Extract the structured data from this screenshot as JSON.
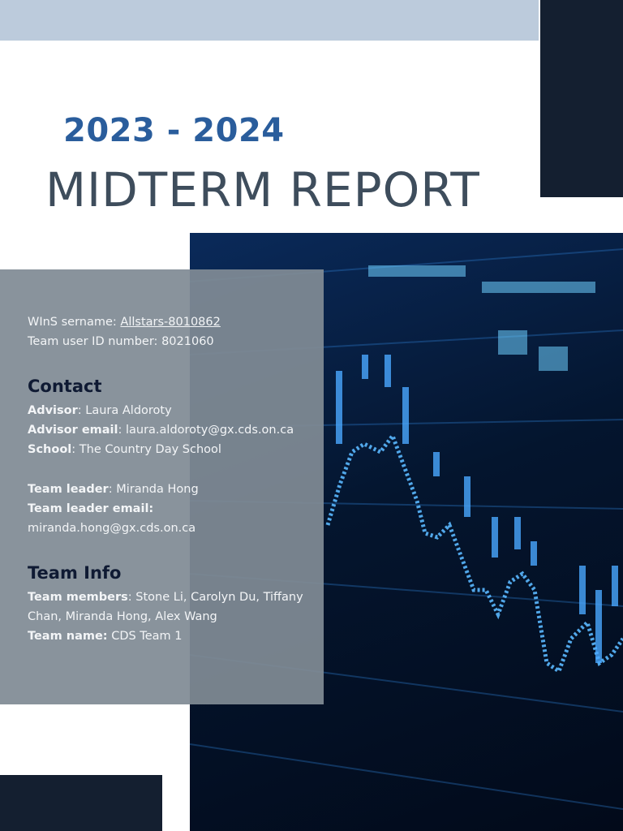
{
  "header": {
    "year": "2023 - 2024",
    "title": "MIDTERM REPORT"
  },
  "account": {
    "username_label": "WInS sername:",
    "username": "Allstars-8010862",
    "team_id_label": "Team user ID number:",
    "team_id": "8021060"
  },
  "contact": {
    "heading": "Contact",
    "advisor_label": "Advisor",
    "advisor": "Laura Aldoroty",
    "advisor_email_label": "Advisor email",
    "advisor_email": "laura.aldoroty@gx.cds.on.ca",
    "school_label": "School",
    "school": "The Country Day School",
    "leader_label": "Team leader",
    "leader": "Miranda Hong",
    "leader_email_label": "Team leader email:",
    "leader_email": "miranda.hong@gx.cds.on.ca"
  },
  "team": {
    "heading": "Team Info",
    "members_label": "Team members",
    "members": "Stone Li, Carolyn Du, Tiffany Chan, Miranda Hong, Alex Wang",
    "name_label": "Team name:",
    "name": "CDS Team 1"
  },
  "colors": {
    "accent": "#2a5d9c",
    "navy": "#141f30",
    "topbar": "#bccbdc",
    "panel": "#808b95"
  }
}
